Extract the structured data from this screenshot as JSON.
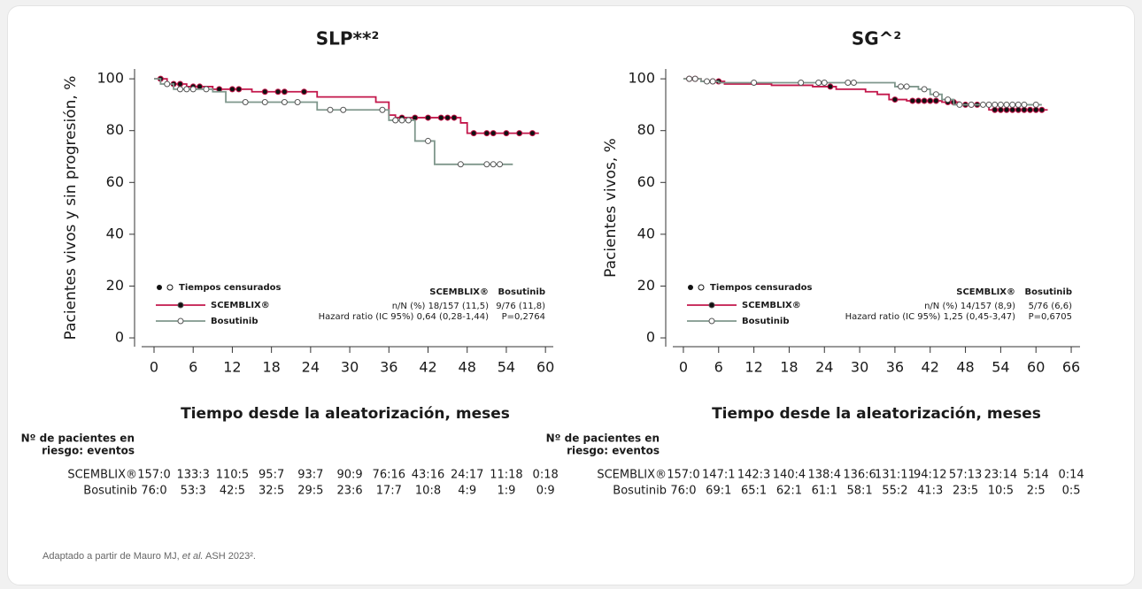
{
  "chart_data": [
    {
      "type": "step",
      "title": "SLP**²",
      "y_label": "Pacientes vivos y sin progresión, %",
      "x_label": "Tiempo desde la aleatorización, meses",
      "xlim": [
        -1.9,
        61.2
      ],
      "ylim": [
        -3.4,
        103.8
      ],
      "xticks": [
        0,
        6,
        12,
        18,
        24,
        30,
        36,
        42,
        48,
        54,
        60
      ],
      "yticks": [
        0,
        20,
        40,
        60,
        80,
        100
      ],
      "grid": false,
      "legend_censored": "Tiempos censurados",
      "series": [
        {
          "name": "SCEMBLIX®",
          "color": "#c3174b",
          "x": [
            0,
            2,
            5,
            9,
            15,
            25,
            34,
            36,
            37,
            47,
            48,
            59
          ],
          "values": [
            100,
            98,
            97,
            96,
            95,
            93,
            91,
            86,
            85,
            83,
            79,
            79
          ],
          "censored_x": [
            1,
            3,
            4,
            6,
            7,
            10,
            12,
            13,
            17,
            19,
            20,
            23,
            38,
            40,
            42,
            44,
            45,
            46,
            49,
            51,
            52,
            54,
            56,
            58
          ],
          "censored_values": [
            100,
            98,
            98,
            97,
            97,
            96,
            96,
            96,
            95,
            95,
            95,
            95,
            85,
            85,
            85,
            85,
            85,
            85,
            79,
            79,
            79,
            79,
            79,
            79
          ],
          "stats": [
            "n/N (%) 18/157 (11,5)",
            "Hazard ratio (IC 95%) 0,64 (0,28-1,44)"
          ],
          "risk": [
            "157:0",
            "133:3",
            "110:5",
            "95:7",
            "93:7",
            "90:9",
            "76:16",
            "43:16",
            "24:17",
            "11:18",
            "0:18"
          ]
        },
        {
          "name": "Bosutinib",
          "color": "#7f978c",
          "x": [
            0,
            1,
            3,
            9,
            11,
            25,
            36,
            40,
            43,
            55
          ],
          "values": [
            100,
            98,
            96,
            95,
            91,
            88,
            84,
            76,
            67,
            67
          ],
          "censored_x": [
            2,
            4,
            5,
            6,
            8,
            14,
            17,
            20,
            22,
            27,
            29,
            35,
            37,
            38,
            39,
            42,
            47,
            51,
            52,
            53
          ],
          "censored_values": [
            98,
            96,
            96,
            96,
            96,
            91,
            91,
            91,
            91,
            88,
            88,
            88,
            84,
            84,
            84,
            76,
            67,
            67,
            67,
            67
          ],
          "stats": [
            "9/76 (11,8)",
            "P=0,2764"
          ],
          "risk": [
            "76:0",
            "53:3",
            "42:5",
            "32:5",
            "29:5",
            "23:6",
            "17:7",
            "10:8",
            "4:9",
            "1:9",
            "0:9"
          ]
        }
      ],
      "risk_title": [
        "Nº de pacientes en",
        "riesgo: eventos"
      ]
    },
    {
      "type": "step",
      "title": "SG^²",
      "y_label": "Pacientes vivos, %",
      "x_label": "Tiempo desde la aleatorización, meses",
      "xlim": [
        -1.8,
        67.5
      ],
      "ylim": [
        -3.4,
        103.8
      ],
      "xticks": [
        0,
        6,
        12,
        18,
        24,
        30,
        36,
        42,
        48,
        54,
        60,
        66
      ],
      "yticks": [
        0,
        20,
        40,
        60,
        80,
        100
      ],
      "grid": false,
      "legend_censored": "Tiempos censurados",
      "series": [
        {
          "name": "SCEMBLIX®",
          "color": "#c3174b",
          "x": [
            0,
            3,
            7,
            15,
            22,
            26,
            31,
            33,
            35,
            38,
            44,
            47,
            52,
            62
          ],
          "values": [
            100,
            99,
            98,
            97.5,
            97,
            96,
            95,
            94,
            92,
            91.5,
            91,
            90,
            88,
            88
          ],
          "censored_x": [
            1,
            2,
            5,
            6,
            25,
            36,
            39,
            40,
            41,
            42,
            43,
            45,
            46,
            48,
            49,
            50,
            53,
            54,
            55,
            56,
            57,
            58,
            59,
            60,
            61
          ],
          "censored_values": [
            100,
            100,
            99,
            99,
            97,
            92,
            91.5,
            91.5,
            91.5,
            91.5,
            91.5,
            91,
            91,
            90,
            90,
            90,
            88,
            88,
            88,
            88,
            88,
            88,
            88,
            88,
            88
          ],
          "stats": [
            "n/N (%) 14/157 (8,9)",
            "Hazard ratio (IC 95%) 1,25 (0,45-3,47)"
          ],
          "risk": [
            "157:0",
            "147:1",
            "142:3",
            "140:4",
            "138:4",
            "136:6",
            "131:11",
            "94:12",
            "57:13",
            "23:14",
            "5:14",
            "0:14"
          ]
        },
        {
          "name": "Bosutinib",
          "color": "#7f978c",
          "x": [
            0,
            3,
            6,
            36,
            40,
            42,
            44,
            46,
            61
          ],
          "values": [
            100,
            99,
            98.5,
            97,
            96,
            94,
            92,
            90,
            90
          ],
          "censored_x": [
            1,
            2,
            4,
            5,
            12,
            20,
            23,
            24,
            28,
            29,
            37,
            38,
            41,
            43,
            45,
            47,
            49,
            51,
            52,
            53,
            54,
            55,
            56,
            57,
            58,
            60
          ],
          "censored_values": [
            100,
            100,
            99,
            99,
            98.5,
            98.5,
            98.5,
            98.5,
            98.5,
            98.5,
            97,
            97,
            96,
            94,
            92,
            90,
            90,
            90,
            90,
            90,
            90,
            90,
            90,
            90,
            90,
            90
          ],
          "stats": [
            "5/76 (6,6)",
            "P=0,6705"
          ],
          "risk": [
            "76:0",
            "69:1",
            "65:1",
            "62:1",
            "61:1",
            "58:1",
            "55:2",
            "41:3",
            "23:5",
            "10:5",
            "2:5",
            "0:5"
          ]
        }
      ],
      "risk_title": [
        "Nº de pacientes en",
        "riesgo: eventos"
      ]
    }
  ],
  "footer": [
    "Adaptado a partir de Mauro MJ, ",
    "et al.",
    " ASH 2023²."
  ]
}
